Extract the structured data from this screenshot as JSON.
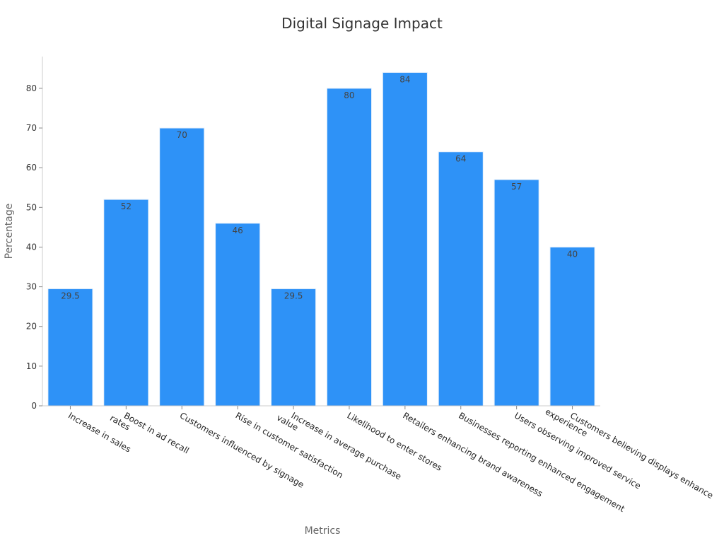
{
  "chart_data": {
    "type": "bar",
    "title": "Digital Signage Impact",
    "xlabel": "Metrics",
    "ylabel": "Percentage",
    "ylim": [
      0,
      88
    ],
    "yticks": [
      0,
      10,
      20,
      30,
      40,
      50,
      60,
      70,
      80
    ],
    "grid": false,
    "bar_color": "#2e92f7",
    "categories": [
      [
        "Increase in sales"
      ],
      [
        "Boost in ad recall",
        "rates"
      ],
      [
        "Customers influenced by signage"
      ],
      [
        "Rise in customer satisfaction"
      ],
      [
        "Increase in average purchase",
        "value"
      ],
      [
        "Likelihood to enter stores"
      ],
      [
        "Retailers enhancing brand awareness"
      ],
      [
        "Businesses reporting enhanced engagement"
      ],
      [
        "Users observing improved service"
      ],
      [
        "Customers believing displays enhance",
        "experience"
      ]
    ],
    "values": [
      29.5,
      52,
      70,
      46,
      29.5,
      80,
      84,
      64,
      57,
      40
    ],
    "value_labels": [
      "29.5",
      "52",
      "70",
      "46",
      "29.5",
      "80",
      "84",
      "64",
      "57",
      "40"
    ]
  }
}
